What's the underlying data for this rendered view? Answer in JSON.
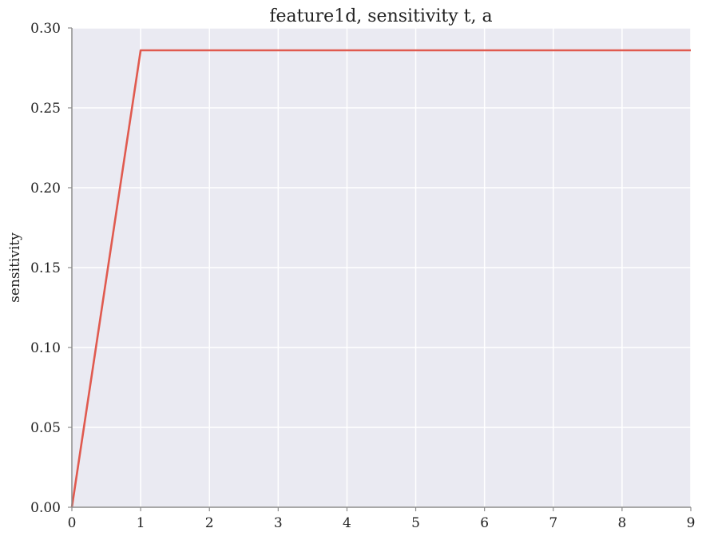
{
  "chart_data": {
    "type": "line",
    "title": "feature1d, sensitivity t, a",
    "xlabel": "",
    "ylabel": "sensitivity",
    "xlim": [
      0,
      9
    ],
    "ylim": [
      0,
      0.3
    ],
    "x_ticks": [
      "0",
      "1",
      "2",
      "3",
      "4",
      "5",
      "6",
      "7",
      "8",
      "9"
    ],
    "y_ticks": [
      "0.00",
      "0.05",
      "0.10",
      "0.15",
      "0.20",
      "0.25",
      "0.30"
    ],
    "grid": true,
    "series": [
      {
        "x": [
          0,
          1,
          2,
          3,
          4,
          5,
          6,
          7,
          8,
          9
        ],
        "values": [
          0.0,
          0.286,
          0.286,
          0.286,
          0.286,
          0.286,
          0.286,
          0.286,
          0.286,
          0.286
        ],
        "color": "#e05a4f"
      }
    ],
    "colors": {
      "plot_background": "#eaeaf2",
      "grid": "#ffffff",
      "axis": "#8c8c8c",
      "text": "#222222"
    }
  }
}
